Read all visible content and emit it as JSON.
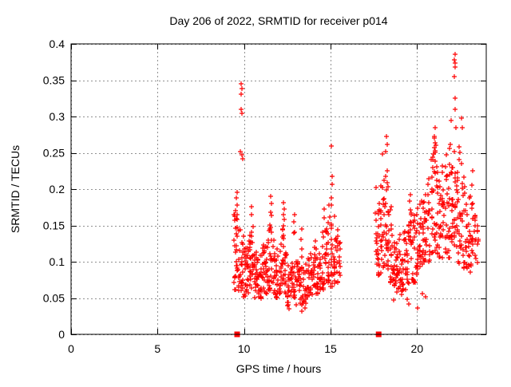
{
  "page": {
    "background": "#ffffff"
  },
  "chart_data": {
    "type": "scatter",
    "title": "Day 206 of 2022, SRMTID for receiver p014",
    "xlabel": "GPS time / hours",
    "ylabel": "SRMTID / TECUs",
    "xlim": [
      0,
      24
    ],
    "ylim": [
      0,
      0.4
    ],
    "xticks": [
      0,
      5,
      10,
      15,
      20
    ],
    "xtick_labels": [
      "0",
      "5",
      "10",
      "15",
      "20"
    ],
    "yticks": [
      0,
      0.05,
      0.1,
      0.15,
      0.2,
      0.25,
      0.3,
      0.35,
      0.4
    ],
    "ytick_labels": [
      "0",
      "0.05",
      "0.1",
      "0.15",
      "0.2",
      "0.25",
      "0.3",
      "0.35",
      "0.4"
    ],
    "grid": true,
    "grid_color": "#919191",
    "marker_color": "#ff0000",
    "border_color": "#000000",
    "legend": "none",
    "seed": 206,
    "series": [
      {
        "name": "srmtid-points",
        "marker": "plus",
        "color": "#ff0000",
        "points": [
          [
            9.82,
            0.345
          ],
          [
            9.86,
            0.338
          ],
          [
            9.84,
            0.331
          ],
          [
            9.83,
            0.31
          ],
          [
            9.88,
            0.304
          ],
          [
            9.8,
            0.252
          ],
          [
            9.86,
            0.247
          ],
          [
            9.9,
            0.242
          ],
          [
            9.58,
            0.196
          ],
          [
            9.55,
            0.188
          ],
          [
            9.6,
            0.178
          ],
          [
            9.52,
            0.17
          ],
          [
            12.28,
            0.181
          ],
          [
            12.3,
            0.172
          ],
          [
            12.26,
            0.165
          ],
          [
            12.31,
            0.158
          ],
          [
            12.29,
            0.15
          ],
          [
            11.55,
            0.19
          ],
          [
            11.57,
            0.18
          ],
          [
            11.53,
            0.168
          ],
          [
            13.34,
            0.145
          ],
          [
            13.3,
            0.131
          ],
          [
            15.04,
            0.259
          ],
          [
            15.07,
            0.218
          ],
          [
            15.08,
            0.207
          ],
          [
            15.06,
            0.188
          ],
          [
            15.03,
            0.178
          ],
          [
            14.62,
            0.172
          ],
          [
            14.65,
            0.16
          ],
          [
            10.45,
            0.176
          ],
          [
            10.43,
            0.165
          ],
          [
            12.9,
            0.165
          ],
          [
            12.88,
            0.155
          ],
          [
            13.35,
            0.032
          ],
          [
            12.62,
            0.035
          ],
          [
            13.52,
            0.036
          ],
          [
            17.62,
            0.202
          ],
          [
            17.6,
            0.167
          ],
          [
            17.98,
            0.248
          ],
          [
            18.22,
            0.272
          ],
          [
            18.28,
            0.262
          ],
          [
            18.18,
            0.252
          ],
          [
            21.98,
            0.295
          ],
          [
            22.56,
            0.298
          ],
          [
            22.6,
            0.285
          ],
          [
            22.18,
            0.386
          ],
          [
            22.16,
            0.378
          ],
          [
            22.21,
            0.374
          ],
          [
            22.19,
            0.368
          ],
          [
            22.17,
            0.355
          ],
          [
            22.22,
            0.325
          ],
          [
            22.2,
            0.31
          ],
          [
            22.24,
            0.285
          ],
          [
            20.05,
            0.036
          ],
          [
            19.45,
            0.048
          ],
          [
            20.48,
            0.052
          ],
          [
            18.65,
            0.047
          ],
          [
            20.3,
            0.056
          ],
          [
            19.5,
            0.042
          ],
          [
            23.2,
            0.225
          ],
          [
            23.15,
            0.205
          ],
          [
            21.05,
            0.285
          ],
          [
            21.02,
            0.272
          ],
          [
            21.08,
            0.26
          ],
          [
            20.95,
            0.248
          ],
          [
            19.62,
            0.192
          ],
          [
            19.58,
            0.183
          ]
        ],
        "streaks": [
          [
            9.45,
            0.15,
            16,
            0.06,
            0.17,
            1.3
          ],
          [
            9.58,
            0.1,
            14,
            0.075,
            0.185,
            1.2
          ],
          [
            9.72,
            0.12,
            12,
            0.06,
            0.145,
            1.3
          ],
          [
            9.88,
            0.14,
            16,
            0.055,
            0.135,
            1.3
          ],
          [
            10.05,
            0.14,
            16,
            0.05,
            0.12,
            1.3
          ],
          [
            10.22,
            0.12,
            14,
            0.055,
            0.13,
            1.3
          ],
          [
            10.38,
            0.12,
            16,
            0.055,
            0.15,
            1.3
          ],
          [
            10.5,
            0.08,
            12,
            0.07,
            0.16,
            1.2
          ],
          [
            10.65,
            0.12,
            15,
            0.05,
            0.12,
            1.3
          ],
          [
            10.82,
            0.12,
            14,
            0.05,
            0.115,
            1.3
          ],
          [
            10.98,
            0.12,
            15,
            0.045,
            0.11,
            1.3
          ],
          [
            11.14,
            0.12,
            15,
            0.05,
            0.125,
            1.3
          ],
          [
            11.3,
            0.12,
            15,
            0.055,
            0.14,
            1.3
          ],
          [
            11.46,
            0.1,
            14,
            0.06,
            0.155,
            1.2
          ],
          [
            11.58,
            0.08,
            11,
            0.07,
            0.165,
            1.2
          ],
          [
            11.74,
            0.12,
            15,
            0.055,
            0.13,
            1.3
          ],
          [
            11.91,
            0.13,
            15,
            0.05,
            0.12,
            1.3
          ],
          [
            12.08,
            0.11,
            14,
            0.055,
            0.13,
            1.3
          ],
          [
            12.24,
            0.1,
            14,
            0.06,
            0.148,
            1.2
          ],
          [
            12.4,
            0.1,
            12,
            0.055,
            0.12,
            1.2
          ],
          [
            12.56,
            0.13,
            15,
            0.04,
            0.105,
            1.3
          ],
          [
            12.73,
            0.12,
            14,
            0.045,
            0.11,
            1.3
          ],
          [
            12.9,
            0.1,
            14,
            0.05,
            0.148,
            1.4
          ],
          [
            13.06,
            0.12,
            14,
            0.04,
            0.1,
            1.3
          ],
          [
            13.22,
            0.12,
            14,
            0.034,
            0.095,
            1.3
          ],
          [
            13.38,
            0.12,
            13,
            0.035,
            0.12,
            1.5
          ],
          [
            13.55,
            0.12,
            13,
            0.04,
            0.1,
            1.3
          ],
          [
            13.72,
            0.12,
            14,
            0.05,
            0.11,
            1.3
          ],
          [
            13.89,
            0.12,
            14,
            0.055,
            0.115,
            1.3
          ],
          [
            14.06,
            0.12,
            15,
            0.06,
            0.138,
            1.3
          ],
          [
            14.23,
            0.12,
            14,
            0.055,
            0.125,
            1.3
          ],
          [
            14.4,
            0.12,
            14,
            0.06,
            0.125,
            1.3
          ],
          [
            14.57,
            0.12,
            14,
            0.06,
            0.15,
            1.4
          ],
          [
            14.74,
            0.12,
            14,
            0.065,
            0.16,
            1.4
          ],
          [
            14.9,
            0.11,
            14,
            0.07,
            0.185,
            1.4
          ],
          [
            15.06,
            0.1,
            15,
            0.065,
            0.17,
            1.3
          ],
          [
            15.22,
            0.1,
            14,
            0.07,
            0.165,
            1.3
          ],
          [
            15.38,
            0.1,
            12,
            0.07,
            0.15,
            1.2
          ],
          [
            15.53,
            0.09,
            9,
            0.075,
            0.13,
            1.2
          ],
          [
            17.68,
            0.1,
            12,
            0.075,
            0.165,
            1.3
          ],
          [
            17.8,
            0.1,
            14,
            0.08,
            0.19,
            1.2
          ],
          [
            17.94,
            0.1,
            15,
            0.085,
            0.21,
            1.2
          ],
          [
            18.08,
            0.09,
            14,
            0.09,
            0.22,
            1.2
          ],
          [
            18.22,
            0.09,
            13,
            0.095,
            0.235,
            1.2
          ],
          [
            18.36,
            0.1,
            14,
            0.085,
            0.215,
            1.2
          ],
          [
            18.5,
            0.1,
            14,
            0.07,
            0.18,
            1.3
          ],
          [
            18.66,
            0.12,
            14,
            0.06,
            0.15,
            1.3
          ],
          [
            18.82,
            0.12,
            14,
            0.055,
            0.14,
            1.3
          ],
          [
            18.98,
            0.12,
            14,
            0.06,
            0.145,
            1.3
          ],
          [
            19.14,
            0.12,
            14,
            0.055,
            0.135,
            1.3
          ],
          [
            19.31,
            0.12,
            14,
            0.06,
            0.15,
            1.3
          ],
          [
            19.48,
            0.12,
            15,
            0.07,
            0.185,
            1.3
          ],
          [
            19.65,
            0.12,
            14,
            0.075,
            0.175,
            1.3
          ],
          [
            19.82,
            0.12,
            14,
            0.07,
            0.165,
            1.3
          ],
          [
            19.99,
            0.12,
            15,
            0.08,
            0.175,
            1.3
          ],
          [
            20.16,
            0.12,
            15,
            0.09,
            0.185,
            1.2
          ],
          [
            20.33,
            0.12,
            15,
            0.095,
            0.19,
            1.2
          ],
          [
            20.5,
            0.12,
            15,
            0.1,
            0.2,
            1.2
          ],
          [
            20.68,
            0.12,
            15,
            0.1,
            0.22,
            1.2
          ],
          [
            20.86,
            0.1,
            15,
            0.11,
            0.25,
            1.2
          ],
          [
            21.0,
            0.1,
            14,
            0.115,
            0.27,
            1.1
          ],
          [
            21.16,
            0.1,
            14,
            0.11,
            0.24,
            1.2
          ],
          [
            21.33,
            0.12,
            15,
            0.1,
            0.22,
            1.2
          ],
          [
            21.5,
            0.12,
            15,
            0.105,
            0.235,
            1.2
          ],
          [
            21.68,
            0.12,
            15,
            0.11,
            0.25,
            1.2
          ],
          [
            21.86,
            0.1,
            15,
            0.105,
            0.265,
            1.2
          ],
          [
            22.02,
            0.1,
            15,
            0.11,
            0.285,
            1.2
          ],
          [
            22.18,
            0.08,
            15,
            0.115,
            0.26,
            1.1
          ],
          [
            22.33,
            0.1,
            15,
            0.1,
            0.24,
            1.2
          ],
          [
            22.5,
            0.12,
            15,
            0.095,
            0.26,
            1.3
          ],
          [
            22.68,
            0.12,
            15,
            0.09,
            0.22,
            1.3
          ],
          [
            22.85,
            0.12,
            14,
            0.085,
            0.2,
            1.3
          ],
          [
            23.02,
            0.12,
            14,
            0.085,
            0.19,
            1.3
          ],
          [
            23.19,
            0.12,
            12,
            0.09,
            0.185,
            1.2
          ],
          [
            23.36,
            0.12,
            10,
            0.09,
            0.165,
            1.2
          ],
          [
            23.52,
            0.1,
            8,
            0.095,
            0.15,
            1.2
          ]
        ]
      },
      {
        "name": "axis-event-markers",
        "marker": "square",
        "color": "#ff0000",
        "points": [
          [
            9.6,
            0
          ],
          [
            17.78,
            0
          ]
        ]
      }
    ]
  }
}
